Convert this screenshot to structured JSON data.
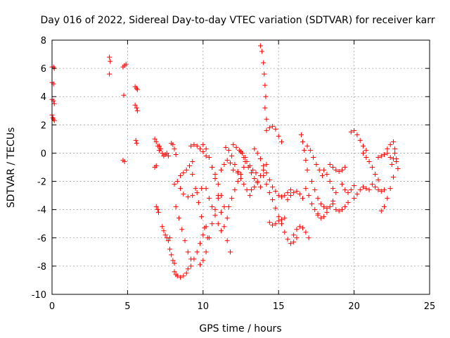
{
  "chart_data": {
    "type": "scatter",
    "title": "Day 016 of 2022, Sidereal Day-to-day VTEC variation (SDTVAR) for receiver karr",
    "xlabel": "GPS time / hours",
    "ylabel": "SDTVAR / TECUs",
    "xlim": [
      0,
      25
    ],
    "ylim": [
      -10,
      8
    ],
    "xticks": [
      "0",
      "5",
      "10",
      "15",
      "20",
      "25"
    ],
    "yticks": [
      "8",
      "6",
      "4",
      "2",
      "0",
      "-2",
      "-4",
      "-6",
      "-8",
      "-10"
    ],
    "grid": true,
    "marker": "+",
    "color": "#ff0000",
    "segments": [
      {
        "x": [
          0.0,
          0.1,
          0.15
        ],
        "y": [
          6.1,
          6.1,
          6.0
        ]
      },
      {
        "x": [
          0.0,
          0.1
        ],
        "y": [
          5.0,
          4.9
        ]
      },
      {
        "x": [
          0.0,
          0.1,
          0.15
        ],
        "y": [
          3.8,
          3.7,
          3.5
        ]
      },
      {
        "x": [
          0.0,
          0.05,
          0.1,
          0.15
        ],
        "y": [
          2.7,
          2.5,
          2.4,
          2.3
        ]
      },
      {
        "x": [
          3.8,
          3.85
        ],
        "y": [
          6.8,
          6.5
        ]
      },
      {
        "x": [
          3.8
        ],
        "y": [
          5.6
        ]
      },
      {
        "x": [
          4.7,
          4.8,
          4.9
        ],
        "y": [
          6.1,
          6.2,
          6.3
        ]
      },
      {
        "x": [
          4.75
        ],
        "y": [
          4.1
        ]
      },
      {
        "x": [
          4.7,
          4.8
        ],
        "y": [
          -0.5,
          -0.6
        ]
      },
      {
        "x": [
          5.5,
          5.6,
          5.65
        ],
        "y": [
          4.7,
          4.6,
          4.5
        ]
      },
      {
        "x": [
          5.5,
          5.6,
          5.65
        ],
        "y": [
          3.4,
          3.2,
          3.0
        ]
      },
      {
        "x": [
          5.55,
          5.6
        ],
        "y": [
          0.9,
          0.7
        ]
      },
      {
        "x": [
          6.8,
          6.9,
          7.0,
          7.1
        ],
        "y": [
          1.0,
          0.8,
          0.5,
          0.2
        ]
      },
      {
        "x": [
          6.8,
          6.9
        ],
        "y": [
          -1.0,
          -0.9
        ]
      },
      {
        "x": [
          6.9,
          7.0,
          7.05
        ],
        "y": [
          -3.8,
          -4.0,
          -4.2
        ]
      },
      {
        "x": [
          7.1,
          7.2,
          7.3,
          7.4,
          7.5,
          7.6,
          7.7
        ],
        "y": [
          0.5,
          0.3,
          0.0,
          -0.2,
          -0.1,
          0.0,
          -0.2
        ]
      },
      {
        "x": [
          7.3,
          7.4,
          7.5,
          7.6,
          7.7,
          7.8
        ],
        "y": [
          -5.2,
          -5.5,
          -5.8,
          -6.0,
          -6.2,
          -6.0
        ]
      },
      {
        "x": [
          7.9,
          8.0,
          8.1,
          8.2
        ],
        "y": [
          0.7,
          0.6,
          0.3,
          -0.1
        ]
      },
      {
        "x": [
          7.8,
          7.9,
          8.0,
          8.1
        ],
        "y": [
          -6.8,
          -7.2,
          -7.6,
          -7.8
        ]
      },
      {
        "x": [
          8.1,
          8.2,
          8.3,
          8.5,
          8.7,
          8.9
        ],
        "y": [
          -8.4,
          -8.6,
          -8.7,
          -8.8,
          -8.7,
          -8.5
        ]
      },
      {
        "x": [
          8.2,
          8.4,
          8.6,
          8.8,
          9.0,
          9.2
        ],
        "y": [
          -3.8,
          -4.6,
          -5.4,
          -6.2,
          -7.0,
          -7.5
        ]
      },
      {
        "x": [
          8.1,
          8.3,
          8.5,
          8.7,
          8.9,
          9.1,
          9.3
        ],
        "y": [
          -2.2,
          -2.0,
          -1.6,
          -1.4,
          -1.2,
          -0.9,
          -0.6
        ]
      },
      {
        "x": [
          8.5,
          8.7,
          9.0,
          9.3,
          9.6,
          9.9
        ],
        "y": [
          -2.5,
          -2.9,
          -3.1,
          -3.0,
          -2.8,
          -2.5
        ]
      },
      {
        "x": [
          9.0,
          9.2,
          9.4,
          9.6,
          9.8,
          10.0,
          10.2
        ],
        "y": [
          -8.2,
          -8.0,
          -7.5,
          -7.0,
          -6.4,
          -5.8,
          -5.2
        ]
      },
      {
        "x": [
          9.2,
          9.4,
          9.6,
          9.8,
          10.0,
          10.2
        ],
        "y": [
          0.5,
          0.6,
          0.5,
          0.3,
          0.1,
          -0.2
        ]
      },
      {
        "x": [
          9.3,
          9.5,
          9.7,
          9.9,
          10.1,
          10.3
        ],
        "y": [
          -1.5,
          -2.5,
          -3.5,
          -4.5,
          -5.3,
          -6.0
        ]
      },
      {
        "x": [
          10.0,
          10.2,
          10.4,
          10.6,
          10.8
        ],
        "y": [
          0.6,
          0.3,
          -0.3,
          -1.0,
          -1.8
        ]
      },
      {
        "x": [
          9.8,
          10.0,
          10.2,
          10.4,
          10.6,
          10.8,
          11.0
        ],
        "y": [
          -7.9,
          -7.6,
          -7.0,
          -6.0,
          -5.0,
          -4.0,
          -3.0
        ]
      },
      {
        "x": [
          10.2,
          10.4,
          10.6,
          10.8,
          11.0,
          11.2
        ],
        "y": [
          -2.5,
          -3.2,
          -3.8,
          -4.4,
          -5.0,
          -5.5
        ]
      },
      {
        "x": [
          10.6,
          10.8,
          11.0,
          11.2,
          11.4,
          11.6
        ],
        "y": [
          -1.0,
          -1.5,
          -2.2,
          -3.0,
          -3.8,
          -4.6
        ]
      },
      {
        "x": [
          11.0,
          11.2,
          11.4,
          11.6,
          11.8
        ],
        "y": [
          -3.2,
          -4.2,
          -5.2,
          -6.2,
          -7.0
        ]
      },
      {
        "x": [
          11.2,
          11.4,
          11.6,
          11.8,
          12.0
        ],
        "y": [
          -1.2,
          -0.8,
          -0.5,
          -0.7,
          -1.2
        ]
      },
      {
        "x": [
          11.5,
          11.7,
          11.9,
          12.1,
          12.3
        ],
        "y": [
          0.4,
          0.2,
          -0.2,
          -0.8,
          -1.4
        ]
      },
      {
        "x": [
          11.7,
          11.9,
          12.1,
          12.3,
          12.5,
          12.7
        ],
        "y": [
          -3.8,
          -3.2,
          -2.6,
          -2.0,
          -1.5,
          -1.0
        ]
      },
      {
        "x": [
          12.0,
          12.2,
          12.4,
          12.6,
          12.8
        ],
        "y": [
          0.6,
          0.4,
          0.2,
          0.0,
          -0.3
        ]
      },
      {
        "x": [
          12.3,
          12.5,
          12.7,
          12.9,
          13.1
        ],
        "y": [
          -1.3,
          -1.8,
          -2.2,
          -2.6,
          -3.0
        ]
      },
      {
        "x": [
          12.5,
          12.7,
          12.9,
          13.1,
          13.3,
          13.5
        ],
        "y": [
          0.1,
          -0.3,
          -0.6,
          -0.9,
          -1.2,
          -1.4
        ]
      },
      {
        "x": [
          12.8,
          13.0,
          13.2,
          13.4,
          13.6,
          13.8
        ],
        "y": [
          -0.6,
          -1.0,
          -1.4,
          -1.8,
          -2.1,
          -2.4
        ]
      },
      {
        "x": [
          13.2,
          13.4,
          13.6,
          13.8,
          14.0,
          14.2
        ],
        "y": [
          -2.6,
          -2.4,
          -2.0,
          -1.6,
          -1.2,
          -0.8
        ]
      },
      {
        "x": [
          13.4,
          13.6,
          13.8,
          14.0,
          14.2,
          14.4
        ],
        "y": [
          0.3,
          0.0,
          -0.4,
          -0.9,
          -1.4,
          -1.9
        ]
      },
      {
        "x": [
          13.8,
          13.9,
          14.0,
          14.05,
          14.1,
          14.15
        ],
        "y": [
          7.6,
          7.2,
          6.4,
          5.6,
          4.8,
          4.0
        ]
      },
      {
        "x": [
          14.1,
          14.2
        ],
        "y": [
          3.2,
          2.4
        ]
      },
      {
        "x": [
          14.0,
          14.2,
          14.4,
          14.6,
          14.8,
          15.0
        ],
        "y": [
          -1.6,
          -2.2,
          -2.8,
          -3.3,
          -3.9,
          -4.5
        ]
      },
      {
        "x": [
          14.2,
          14.4,
          14.6,
          14.8,
          15.0,
          15.2
        ],
        "y": [
          1.6,
          1.8,
          1.9,
          1.7,
          1.2,
          0.8
        ]
      },
      {
        "x": [
          14.4,
          14.6,
          14.8,
          15.0,
          15.2,
          15.4
        ],
        "y": [
          -4.9,
          -5.1,
          -5.0,
          -4.8,
          -4.7,
          -4.6
        ]
      },
      {
        "x": [
          14.6,
          14.8,
          15.0,
          15.2,
          15.4,
          15.6,
          15.8
        ],
        "y": [
          -2.4,
          -2.7,
          -3.0,
          -3.1,
          -3.0,
          -2.8,
          -2.6
        ]
      },
      {
        "x": [
          15.2,
          15.4,
          15.6,
          15.8,
          16.0,
          16.2
        ],
        "y": [
          -5.0,
          -5.6,
          -6.1,
          -6.4,
          -6.3,
          -6.0
        ]
      },
      {
        "x": [
          15.6,
          15.8,
          16.0,
          16.2,
          16.4,
          16.6
        ],
        "y": [
          -3.3,
          -3.0,
          -2.8,
          -2.7,
          -2.9,
          -3.2
        ]
      },
      {
        "x": [
          16.0,
          16.2,
          16.4,
          16.6,
          16.8,
          17.0
        ],
        "y": [
          -5.8,
          -5.4,
          -5.2,
          -5.3,
          -5.6,
          -6.0
        ]
      },
      {
        "x": [
          16.5,
          16.6,
          16.7,
          16.8,
          16.9
        ],
        "y": [
          1.3,
          0.8,
          0.2,
          -0.5,
          -1.2
        ]
      },
      {
        "x": [
          16.8,
          17.0,
          17.2,
          17.4,
          17.6
        ],
        "y": [
          -2.5,
          -3.0,
          -3.6,
          -4.0,
          -4.3
        ]
      },
      {
        "x": [
          16.9,
          17.1,
          17.3,
          17.5,
          17.7,
          17.9
        ],
        "y": [
          0.5,
          0.2,
          -0.3,
          -0.8,
          -1.2,
          -1.6
        ]
      },
      {
        "x": [
          17.2,
          17.4,
          17.6,
          17.8,
          18.0,
          18.2
        ],
        "y": [
          -2.0,
          -2.6,
          -3.2,
          -3.6,
          -3.8,
          -3.9
        ]
      },
      {
        "x": [
          17.6,
          17.8,
          18.0,
          18.2,
          18.4,
          18.6
        ],
        "y": [
          -4.4,
          -4.6,
          -4.5,
          -4.2,
          -3.8,
          -3.4
        ]
      },
      {
        "x": [
          18.0,
          18.2,
          18.4,
          18.6,
          18.8
        ],
        "y": [
          -1.2,
          -1.5,
          -2.0,
          -2.5,
          -2.8
        ]
      },
      {
        "x": [
          18.4,
          18.6,
          18.8,
          19.0,
          19.2,
          19.4
        ],
        "y": [
          -0.8,
          -1.0,
          -1.2,
          -1.3,
          -1.2,
          -1.0
        ]
      },
      {
        "x": [
          18.6,
          18.8,
          19.0,
          19.2,
          19.4,
          19.6
        ],
        "y": [
          -3.6,
          -4.0,
          -4.1,
          -4.0,
          -3.8,
          -3.5
        ]
      },
      {
        "x": [
          19.2,
          19.4,
          19.6,
          19.8,
          20.0
        ],
        "y": [
          -2.2,
          -2.6,
          -2.8,
          -2.6,
          -2.3
        ]
      },
      {
        "x": [
          19.8,
          20.0,
          20.2,
          20.4,
          20.6,
          20.8
        ],
        "y": [
          1.5,
          1.6,
          1.3,
          0.9,
          0.5,
          0.2
        ]
      },
      {
        "x": [
          20.0,
          20.2,
          20.4,
          20.6,
          20.8,
          21.0
        ],
        "y": [
          -3.2,
          -2.9,
          -2.6,
          -2.4,
          -2.5,
          -2.6
        ]
      },
      {
        "x": [
          20.6,
          20.8,
          21.0,
          21.2,
          21.4,
          21.6
        ],
        "y": [
          0.0,
          -0.3,
          -0.6,
          -1.0,
          -1.5,
          -1.9
        ]
      },
      {
        "x": [
          21.2,
          21.4,
          21.6,
          21.8,
          22.0
        ],
        "y": [
          -2.2,
          -2.4,
          -2.6,
          -2.7,
          -2.6
        ]
      },
      {
        "x": [
          21.6,
          21.8,
          22.0,
          22.2,
          22.4
        ],
        "y": [
          -0.3,
          -0.2,
          -0.1,
          0.0,
          -0.3
        ]
      },
      {
        "x": [
          21.8,
          22.0,
          22.2,
          22.4,
          22.6
        ],
        "y": [
          -4.1,
          -3.8,
          -3.2,
          -2.5,
          -1.7
        ]
      },
      {
        "x": [
          22.2,
          22.4,
          22.6,
          22.7,
          22.8
        ],
        "y": [
          0.3,
          0.6,
          0.8,
          0.3,
          -0.4
        ]
      },
      {
        "x": [
          22.5,
          22.6,
          22.7,
          22.8,
          22.9
        ],
        "y": [
          -0.8,
          -0.4,
          0.0,
          -0.6,
          -1.1
        ]
      }
    ]
  }
}
